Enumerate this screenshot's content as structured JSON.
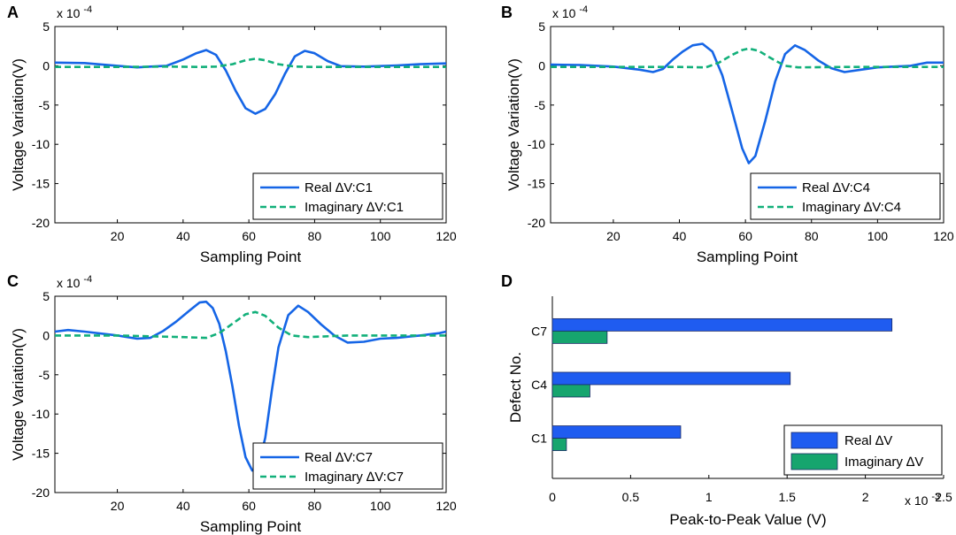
{
  "figure": {
    "panels": [
      "A",
      "B",
      "C",
      "D"
    ]
  },
  "colors": {
    "real": "#1565E6",
    "imag": "#12B07A",
    "bar_real": "#1F5CF0",
    "bar_imag": "#16A56E",
    "axis": "#000000"
  },
  "chart_data": [
    {
      "panel": "A",
      "type": "line",
      "xlabel": "Sampling Point",
      "ylabel": "Voltage Variation(V)",
      "multiplier": "x 10",
      "multiplier_exp": "-4",
      "xlim": [
        1,
        120
      ],
      "ylim": [
        -20,
        5
      ],
      "xticks": [
        20,
        40,
        60,
        80,
        100,
        120
      ],
      "yticks": [
        5,
        0,
        -5,
        -10,
        -15,
        -20
      ],
      "legend_position": "bottom-right",
      "series": [
        {
          "name": "Real ∆V:C1",
          "style": "solid",
          "points": [
            [
              1,
              0.4
            ],
            [
              10,
              0.35
            ],
            [
              20,
              0.0
            ],
            [
              26,
              -0.2
            ],
            [
              30,
              -0.1
            ],
            [
              35,
              0.0
            ],
            [
              40,
              0.8
            ],
            [
              44,
              1.6
            ],
            [
              47,
              2.0
            ],
            [
              50,
              1.4
            ],
            [
              53,
              -0.6
            ],
            [
              56,
              -3.2
            ],
            [
              59,
              -5.4
            ],
            [
              62,
              -6.1
            ],
            [
              65,
              -5.5
            ],
            [
              68,
              -3.6
            ],
            [
              71,
              -1.0
            ],
            [
              74,
              1.2
            ],
            [
              77,
              1.9
            ],
            [
              80,
              1.6
            ],
            [
              84,
              0.6
            ],
            [
              88,
              -0.05
            ],
            [
              95,
              -0.1
            ],
            [
              105,
              0.05
            ],
            [
              112,
              0.2
            ],
            [
              120,
              0.3
            ]
          ]
        },
        {
          "name": "Imaginary ∆V:C1",
          "style": "dashed",
          "points": [
            [
              1,
              -0.15
            ],
            [
              20,
              -0.15
            ],
            [
              35,
              -0.1
            ],
            [
              45,
              -0.15
            ],
            [
              50,
              -0.1
            ],
            [
              55,
              0.2
            ],
            [
              59,
              0.7
            ],
            [
              62,
              0.9
            ],
            [
              65,
              0.7
            ],
            [
              69,
              0.2
            ],
            [
              74,
              -0.1
            ],
            [
              80,
              -0.15
            ],
            [
              100,
              -0.15
            ],
            [
              120,
              -0.15
            ]
          ]
        }
      ]
    },
    {
      "panel": "B",
      "type": "line",
      "xlabel": "Sampling Point",
      "ylabel": "Voltage Variation(V)",
      "multiplier": "x 10",
      "multiplier_exp": "-4",
      "xlim": [
        1,
        120
      ],
      "ylim": [
        -20,
        5
      ],
      "xticks": [
        20,
        40,
        60,
        80,
        100,
        120
      ],
      "yticks": [
        5,
        0,
        -5,
        -10,
        -15,
        -20
      ],
      "legend_position": "bottom-right",
      "series": [
        {
          "name": "Real ∆V:C4",
          "style": "solid",
          "points": [
            [
              1,
              0.15
            ],
            [
              10,
              0.1
            ],
            [
              20,
              -0.1
            ],
            [
              28,
              -0.5
            ],
            [
              32,
              -0.8
            ],
            [
              35,
              -0.4
            ],
            [
              38,
              0.8
            ],
            [
              41,
              1.8
            ],
            [
              44,
              2.6
            ],
            [
              47,
              2.8
            ],
            [
              50,
              1.8
            ],
            [
              53,
              -1.2
            ],
            [
              56,
              -5.8
            ],
            [
              59,
              -10.5
            ],
            [
              61,
              -12.4
            ],
            [
              63,
              -11.5
            ],
            [
              66,
              -7.0
            ],
            [
              69,
              -2.0
            ],
            [
              72,
              1.5
            ],
            [
              75,
              2.6
            ],
            [
              78,
              2.0
            ],
            [
              82,
              0.7
            ],
            [
              86,
              -0.3
            ],
            [
              90,
              -0.8
            ],
            [
              95,
              -0.5
            ],
            [
              100,
              -0.2
            ],
            [
              110,
              0.0
            ],
            [
              115,
              0.4
            ],
            [
              120,
              0.4
            ]
          ]
        },
        {
          "name": "Imaginary ∆V:C4",
          "style": "dashed",
          "points": [
            [
              1,
              -0.15
            ],
            [
              20,
              -0.15
            ],
            [
              40,
              -0.15
            ],
            [
              48,
              -0.2
            ],
            [
              52,
              0.4
            ],
            [
              56,
              1.4
            ],
            [
              59,
              2.0
            ],
            [
              61,
              2.2
            ],
            [
              64,
              1.9
            ],
            [
              68,
              0.9
            ],
            [
              72,
              0.0
            ],
            [
              76,
              -0.2
            ],
            [
              90,
              -0.15
            ],
            [
              120,
              -0.15
            ]
          ]
        }
      ]
    },
    {
      "panel": "C",
      "type": "line",
      "xlabel": "Sampling Point",
      "ylabel": "Voltage Variation(V)",
      "multiplier": "x 10",
      "multiplier_exp": "-4",
      "xlim": [
        1,
        120
      ],
      "ylim": [
        -20,
        5
      ],
      "xticks": [
        20,
        40,
        60,
        80,
        100,
        120
      ],
      "yticks": [
        5,
        0,
        -5,
        -10,
        -15,
        -20
      ],
      "legend_position": "bottom-right",
      "series": [
        {
          "name": "Real ∆V:C7",
          "style": "solid",
          "points": [
            [
              1,
              0.5
            ],
            [
              5,
              0.7
            ],
            [
              10,
              0.5
            ],
            [
              20,
              0.0
            ],
            [
              26,
              -0.4
            ],
            [
              30,
              -0.3
            ],
            [
              34,
              0.6
            ],
            [
              38,
              1.8
            ],
            [
              42,
              3.2
            ],
            [
              45,
              4.2
            ],
            [
              47,
              4.3
            ],
            [
              49,
              3.5
            ],
            [
              51,
              1.5
            ],
            [
              53,
              -2.0
            ],
            [
              55,
              -6.5
            ],
            [
              57,
              -11.5
            ],
            [
              59,
              -15.5
            ],
            [
              61,
              -17.2
            ],
            [
              63,
              -16.5
            ],
            [
              65,
              -13.0
            ],
            [
              67,
              -7.0
            ],
            [
              69,
              -1.5
            ],
            [
              72,
              2.6
            ],
            [
              75,
              3.8
            ],
            [
              78,
              3.0
            ],
            [
              82,
              1.4
            ],
            [
              86,
              0.0
            ],
            [
              90,
              -0.9
            ],
            [
              95,
              -0.8
            ],
            [
              100,
              -0.4
            ],
            [
              105,
              -0.3
            ],
            [
              112,
              0.0
            ],
            [
              118,
              0.3
            ],
            [
              120,
              0.5
            ]
          ]
        },
        {
          "name": "Imaginary ∆V:C7",
          "style": "dashed",
          "points": [
            [
              1,
              0.0
            ],
            [
              20,
              0.0
            ],
            [
              40,
              -0.2
            ],
            [
              47,
              -0.3
            ],
            [
              51,
              0.3
            ],
            [
              55,
              1.5
            ],
            [
              59,
              2.7
            ],
            [
              62,
              3.0
            ],
            [
              65,
              2.5
            ],
            [
              69,
              1.0
            ],
            [
              73,
              0.0
            ],
            [
              78,
              -0.2
            ],
            [
              90,
              0.0
            ],
            [
              120,
              0.0
            ]
          ]
        }
      ]
    },
    {
      "panel": "D",
      "type": "bar",
      "orientation": "horizontal",
      "xlabel": "Peak-to-Peak Value (V)",
      "ylabel": "Defect No.",
      "multiplier": "x 10",
      "multiplier_exp": "-3",
      "xlim": [
        0,
        2.5
      ],
      "xticks": [
        "0",
        "0.5",
        "1",
        "1.5",
        "2",
        "2.5"
      ],
      "categories": [
        "C1",
        "C4",
        "C7"
      ],
      "legend_position": "bottom-right",
      "series": [
        {
          "name": "Real ∆V",
          "values": [
            0.82,
            1.52,
            2.17
          ]
        },
        {
          "name": "Imaginary ∆V",
          "values": [
            0.09,
            0.24,
            0.35
          ]
        }
      ]
    }
  ]
}
